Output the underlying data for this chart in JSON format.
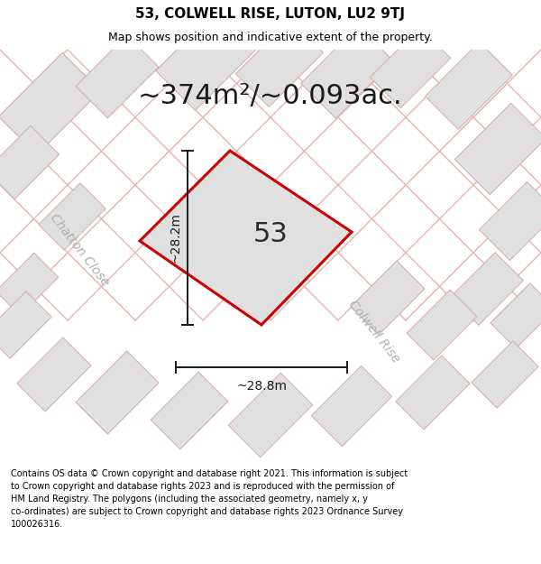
{
  "title_line1": "53, COLWELL RISE, LUTON, LU2 9TJ",
  "title_line2": "Map shows position and indicative extent of the property.",
  "area_text": "~374m²/~0.093ac.",
  "label_53": "53",
  "width_label": "~28.8m",
  "height_label": "~28.2m",
  "street1": "Chatton Close",
  "street2": "Colwell Rise",
  "footer": "Contains OS data © Crown copyright and database right 2021. This information is subject\nto Crown copyright and database rights 2023 and is reproduced with the permission of\nHM Land Registry. The polygons (including the associated geometry, namely x, y\nco-ordinates) are subject to Crown copyright and database rights 2023 Ordnance Survey\n100026316.",
  "bg_color": "#ffffff",
  "map_bg": "#f0f0f0",
  "plot_fill": "#e0e0e0",
  "plot_edge": "#cc0000",
  "road_color": "#e8b0b0",
  "block_fill": "#e0e0e0",
  "block_edge": "#d8b0b0",
  "dim_color": "#1a1a1a",
  "street_color": "#b0b0b0",
  "title_fontsize": 11,
  "subtitle_fontsize": 9,
  "area_fontsize": 22,
  "label_fontsize": 22,
  "dim_fontsize": 10,
  "street_fontsize": 10,
  "footer_fontsize": 7
}
